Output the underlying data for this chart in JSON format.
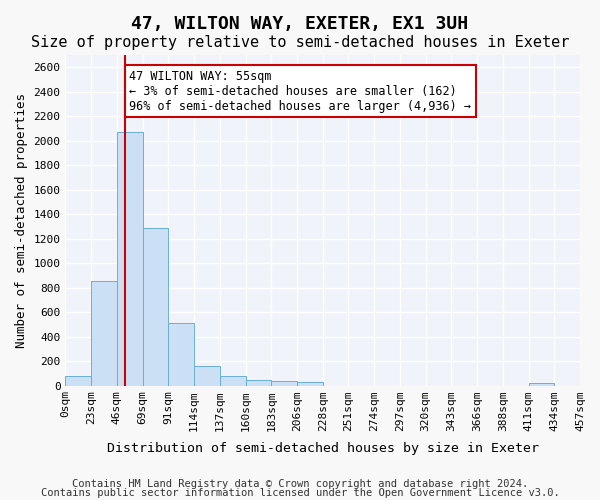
{
  "title": "47, WILTON WAY, EXETER, EX1 3UH",
  "subtitle": "Size of property relative to semi-detached houses in Exeter",
  "xlabel": "Distribution of semi-detached houses by size in Exeter",
  "ylabel": "Number of semi-detached properties",
  "bar_values": [
    75,
    855,
    2075,
    1285,
    510,
    160,
    80,
    45,
    35,
    30,
    0,
    0,
    0,
    0,
    0,
    0,
    0,
    0,
    20,
    0
  ],
  "bar_color": "#cce0f5",
  "bar_edge_color": "#6baed6",
  "bin_labels": [
    "0sqm",
    "23sqm",
    "46sqm",
    "69sqm",
    "91sqm",
    "114sqm",
    "137sqm",
    "160sqm",
    "183sqm",
    "206sqm",
    "228sqm",
    "251sqm",
    "274sqm",
    "297sqm",
    "320sqm",
    "343sqm",
    "366sqm",
    "388sqm",
    "411sqm",
    "434sqm",
    "457sqm"
  ],
  "ylim": [
    0,
    2700
  ],
  "yticks": [
    0,
    200,
    400,
    600,
    800,
    1000,
    1200,
    1400,
    1600,
    1800,
    2000,
    2200,
    2400,
    2600
  ],
  "vline_x": 2.33,
  "annotation_text": "47 WILTON WAY: 55sqm\n← 3% of semi-detached houses are smaller (162)\n96% of semi-detached houses are larger (4,936) →",
  "annotation_box_color": "#ffffff",
  "annotation_box_edgecolor": "#cc0000",
  "footer_line1": "Contains HM Land Registry data © Crown copyright and database right 2024.",
  "footer_line2": "Contains public sector information licensed under the Open Government Licence v3.0.",
  "background_color": "#f0f4fa",
  "grid_color": "#ffffff",
  "title_fontsize": 13,
  "subtitle_fontsize": 11,
  "axis_label_fontsize": 9,
  "tick_fontsize": 8,
  "annotation_fontsize": 8.5,
  "footer_fontsize": 7.5
}
